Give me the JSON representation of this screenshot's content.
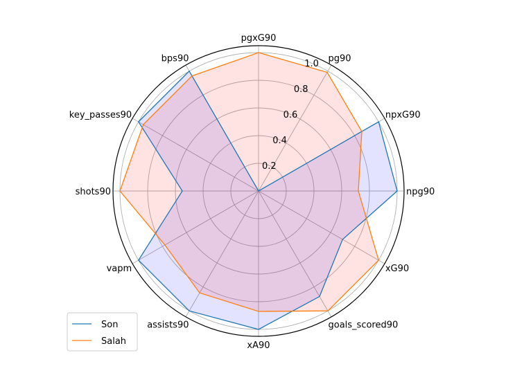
{
  "chart_data": {
    "type": "radar",
    "title": "",
    "categories": [
      "npg90",
      "npxG90",
      "pg90",
      "pgxG90",
      "bps90",
      "key_passes90",
      "shots90",
      "vapm",
      "assists90",
      "xA90",
      "goals_scored90",
      "xG90"
    ],
    "rlim": [
      0,
      1.05
    ],
    "rticks": [
      0.2,
      0.4,
      0.6,
      0.8,
      1.0
    ],
    "rtick_labels": [
      "0.2",
      "0.4",
      "0.6",
      "0.8",
      "1.0"
    ],
    "grid": true,
    "legend_position": "lower-left",
    "series": [
      {
        "name": "Son",
        "color": "#1f77b4",
        "fill": "#0000ff",
        "values": [
          1.0,
          1.0,
          0.0,
          0.0,
          1.0,
          1.0,
          0.55,
          1.0,
          1.0,
          1.0,
          0.88,
          0.7
        ]
      },
      {
        "name": "Salah",
        "color": "#ff7f0e",
        "fill": "#ff0000",
        "values": [
          0.72,
          0.86,
          0.99,
          1.0,
          0.96,
          0.96,
          1.0,
          0.78,
          0.85,
          0.87,
          1.0,
          1.0
        ]
      }
    ]
  }
}
